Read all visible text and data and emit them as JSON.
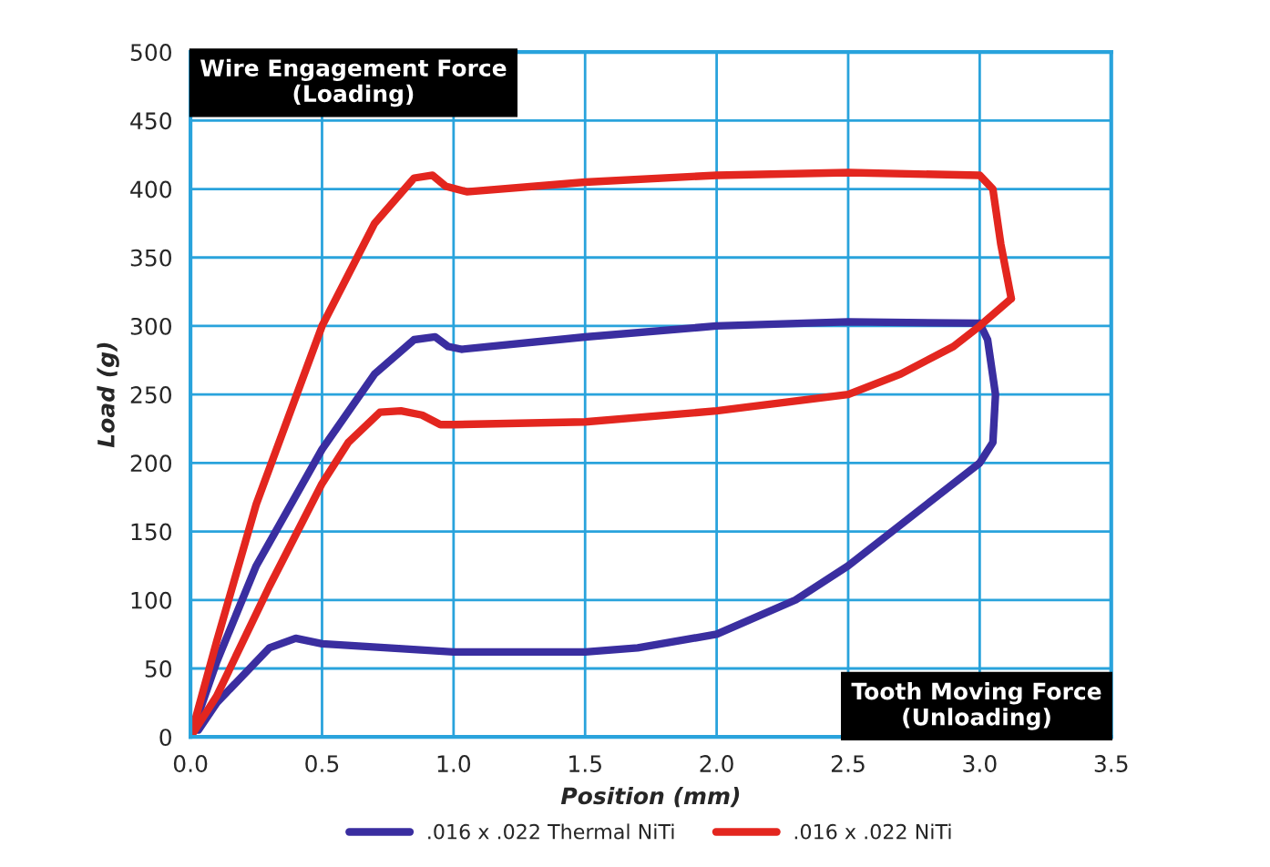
{
  "chart_data": {
    "type": "line",
    "xlabel": "Position (mm)",
    "ylabel": "Load (g)",
    "xlim": [
      0,
      3.5
    ],
    "ylim": [
      0,
      500
    ],
    "xticks": [
      {
        "value": 0,
        "label": "0.0"
      },
      {
        "value": 0.5,
        "label": "0.5"
      },
      {
        "value": 1,
        "label": "1.0"
      },
      {
        "value": 1.5,
        "label": "1.5"
      },
      {
        "value": 2,
        "label": "2.0"
      },
      {
        "value": 2.5,
        "label": "2.5"
      },
      {
        "value": 3,
        "label": "3.0"
      },
      {
        "value": 3.5,
        "label": "3.5"
      }
    ],
    "yticks": [
      0,
      50,
      100,
      150,
      200,
      250,
      300,
      350,
      400,
      450,
      500
    ],
    "grid": true,
    "legend": "bottom",
    "marker": "none",
    "line_style": "solid",
    "annotations": [
      "Wire Engagement Force\n(Loading)",
      "Tooth Moving Force\n(Unloading)"
    ],
    "series": [
      {
        "name": ".016 x .022 Thermal NiTi",
        "color": "#3a2ea0",
        "x": [
          0,
          0.1,
          0.25,
          0.5,
          0.7,
          0.85,
          0.93,
          0.98,
          1.03,
          1.5,
          2.0,
          2.5,
          3.0
        ],
        "values": [
          0,
          55,
          125,
          210,
          265,
          290,
          292,
          285,
          283,
          292,
          300,
          303,
          302
        ]
      },
      {
        "color": "#3a2ea0",
        "x": [
          3.0,
          3.03,
          3.06,
          3.05,
          3.0,
          2.5,
          2.3,
          2.0,
          1.7,
          1.5,
          1.0,
          0.5,
          0.4,
          0.3,
          0.1,
          0.03
        ],
        "values": [
          302,
          290,
          250,
          215,
          200,
          125,
          100,
          75,
          65,
          62,
          62,
          68,
          72,
          65,
          25,
          5
        ]
      },
      {
        "name": ".016 x .022 NiTi",
        "color": "#e3261f",
        "x": [
          0,
          0.1,
          0.25,
          0.5,
          0.7,
          0.85,
          0.92,
          0.97,
          1.05,
          1.5,
          2.0,
          2.5,
          3.0,
          3.05,
          3.08,
          3.12
        ],
        "values": [
          0,
          70,
          170,
          300,
          375,
          408,
          410,
          402,
          398,
          405,
          410,
          412,
          410,
          400,
          360,
          320
        ]
      },
      {
        "color": "#e3261f",
        "x": [
          3.12,
          3.0,
          2.9,
          2.7,
          2.5,
          2.0,
          1.5,
          1.0,
          0.95,
          0.88,
          0.8,
          0.72,
          0.6,
          0.5,
          0.3,
          0.1,
          0
        ],
        "values": [
          320,
          300,
          285,
          265,
          250,
          238,
          230,
          228,
          228,
          235,
          238,
          237,
          215,
          185,
          110,
          30,
          0
        ]
      }
    ]
  }
}
